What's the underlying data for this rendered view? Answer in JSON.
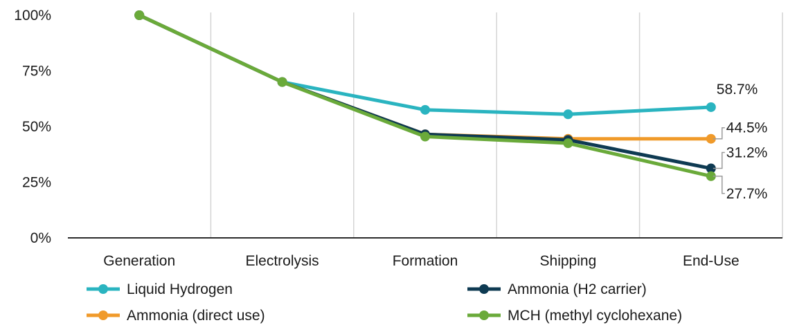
{
  "chart_data": {
    "type": "line",
    "title": "",
    "xlabel": "",
    "ylabel": "",
    "categories": [
      "Generation",
      "Electrolysis",
      "Formation",
      "Shipping",
      "End-Use"
    ],
    "ylim": [
      0,
      100
    ],
    "yticks": [
      {
        "value": 0,
        "label": "0%"
      },
      {
        "value": 25,
        "label": "25%"
      },
      {
        "value": 50,
        "label": "50%"
      },
      {
        "value": 75,
        "label": "75%"
      },
      {
        "value": 100,
        "label": "100%"
      }
    ],
    "grid": "vertical",
    "legend_position": "bottom",
    "series": [
      {
        "name": "Liquid Hydrogen",
        "color": "#2ab4c0",
        "values": [
          100,
          70,
          57.5,
          55.5,
          58.7
        ],
        "end_label": "58.7%"
      },
      {
        "name": "Ammonia (H2 carrier)",
        "color": "#0e3a52",
        "values": [
          100,
          70,
          46.5,
          44.0,
          31.2
        ],
        "end_label": "31.2%"
      },
      {
        "name": "Ammonia (direct use)",
        "color": "#f09a2a",
        "values": [
          100,
          70,
          46.5,
          44.5,
          44.5
        ],
        "end_label": "44.5%"
      },
      {
        "name": "MCH (methyl cyclohexane)",
        "color": "#6aaa3a",
        "values": [
          100,
          70,
          45.5,
          42.5,
          27.7
        ],
        "end_label": "27.7%"
      }
    ]
  }
}
